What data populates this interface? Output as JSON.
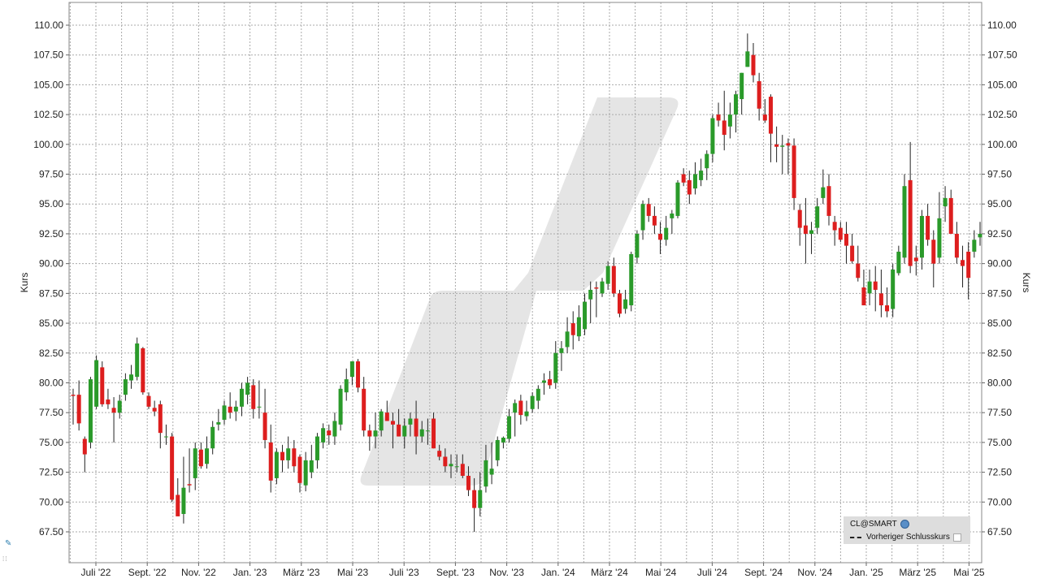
{
  "chart_data": {
    "type": "candlestick",
    "ylabel": "Kurs",
    "ylim": [
      65.5,
      111.5
    ],
    "yticks": [
      "110.00",
      "107.50",
      "105.00",
      "102.50",
      "100.00",
      "97.50",
      "95.00",
      "92.50",
      "90.00",
      "87.50",
      "85.00",
      "82.50",
      "80.00",
      "77.50",
      "75.00",
      "72.50",
      "70.00",
      "67.50"
    ],
    "xticks": [
      "Juli '22",
      "Sept. '22",
      "Nov. '22",
      "Jan. '23",
      "März '23",
      "Mai '23",
      "Juli '23",
      "Sept. '23",
      "Nov. '23",
      "Jan. '24",
      "März '24",
      "Mai '24",
      "Juli '24",
      "Sept. '24",
      "Nov. '24",
      "Jan. '25",
      "März '25",
      "Mai '25"
    ],
    "grid": true,
    "series": [
      {
        "name": "CL@SMART",
        "type": "ohlc",
        "values": [
          [
            79.0,
            79.5,
            76.5,
            78.9
          ],
          [
            79.0,
            80.2,
            76.0,
            76.6
          ],
          [
            75.3,
            75.5,
            72.5,
            74.0
          ],
          [
            75.0,
            80.5,
            74.5,
            80.3
          ],
          [
            78.0,
            82.3,
            77.8,
            81.9
          ],
          [
            81.3,
            81.8,
            78.0,
            78.2
          ],
          [
            78.6,
            79.5,
            77.8,
            78.2
          ],
          [
            77.9,
            78.8,
            75.0,
            77.5
          ],
          [
            77.5,
            79.0,
            77.0,
            78.5
          ],
          [
            79.0,
            80.8,
            78.5,
            80.3
          ],
          [
            80.2,
            81.5,
            79.5,
            80.7
          ],
          [
            80.5,
            83.8,
            80.2,
            83.3
          ],
          [
            82.9,
            83.0,
            79.0,
            79.2
          ],
          [
            78.9,
            79.2,
            77.8,
            78.0
          ],
          [
            77.9,
            78.5,
            77.2,
            77.6
          ],
          [
            78.2,
            78.5,
            74.5,
            75.8
          ],
          [
            75.5,
            76.5,
            74.8,
            75.5
          ],
          [
            75.5,
            75.8,
            70.0,
            70.2
          ],
          [
            70.6,
            72.0,
            69.3,
            68.8
          ],
          [
            69.0,
            73.8,
            68.2,
            71.2
          ],
          [
            71.5,
            74.5,
            70.8,
            71.4
          ],
          [
            72.0,
            75.0,
            71.0,
            74.5
          ],
          [
            74.4,
            75.0,
            72.8,
            73.0
          ],
          [
            73.2,
            75.5,
            72.8,
            74.5
          ],
          [
            74.5,
            76.8,
            74.0,
            76.3
          ],
          [
            76.5,
            77.8,
            76.0,
            76.7
          ],
          [
            76.9,
            78.5,
            76.5,
            78.1
          ],
          [
            78.0,
            79.2,
            77.0,
            77.5
          ],
          [
            77.6,
            78.5,
            76.8,
            78.0
          ],
          [
            78.0,
            80.0,
            77.2,
            79.5
          ],
          [
            79.0,
            80.5,
            78.2,
            80.0
          ],
          [
            79.8,
            80.3,
            77.0,
            77.8
          ],
          [
            78.0,
            80.2,
            77.0,
            78.0
          ],
          [
            77.5,
            79.5,
            74.5,
            75.2
          ],
          [
            75.0,
            76.5,
            70.8,
            71.8
          ],
          [
            72.0,
            74.5,
            71.5,
            74.2
          ],
          [
            74.2,
            74.8,
            72.5,
            73.5
          ],
          [
            73.5,
            75.5,
            72.8,
            74.5
          ],
          [
            74.5,
            75.2,
            72.5,
            73.0
          ],
          [
            73.8,
            74.0,
            70.8,
            71.6
          ],
          [
            71.4,
            74.2,
            70.9,
            73.5
          ],
          [
            72.5,
            74.8,
            72.0,
            73.5
          ],
          [
            73.5,
            75.8,
            72.8,
            75.5
          ],
          [
            75.0,
            76.6,
            74.5,
            76.2
          ],
          [
            76.0,
            76.5,
            74.8,
            75.6
          ],
          [
            75.5,
            77.5,
            74.8,
            76.8
          ],
          [
            76.5,
            79.8,
            76.0,
            79.5
          ],
          [
            79.2,
            81.2,
            78.5,
            80.3
          ],
          [
            80.5,
            81.8,
            79.8,
            81.8
          ],
          [
            81.8,
            82.0,
            79.2,
            79.6
          ],
          [
            79.5,
            80.5,
            75.5,
            76.0
          ],
          [
            76.0,
            76.5,
            74.3,
            75.5
          ],
          [
            75.5,
            77.5,
            74.5,
            76.0
          ],
          [
            76.0,
            77.8,
            75.5,
            77.6
          ],
          [
            77.5,
            78.5,
            76.8,
            76.8
          ],
          [
            76.8,
            77.5,
            74.5,
            76.5
          ],
          [
            76.5,
            77.8,
            75.5,
            75.5
          ],
          [
            75.5,
            77.0,
            74.5,
            76.4
          ],
          [
            76.5,
            77.5,
            75.5,
            77.0
          ],
          [
            77.0,
            78.5,
            74.0,
            75.5
          ],
          [
            75.5,
            76.8,
            75.0,
            76.1
          ],
          [
            76.0,
            77.0,
            74.8,
            76.0
          ],
          [
            77.0,
            77.5,
            74.5,
            74.5
          ],
          [
            74.3,
            74.8,
            73.5,
            73.8
          ],
          [
            73.8,
            74.5,
            72.5,
            73.0
          ],
          [
            73.0,
            74.0,
            72.0,
            73.2
          ],
          [
            73.0,
            74.0,
            72.5,
            73.0
          ],
          [
            73.2,
            74.0,
            72.0,
            72.2
          ],
          [
            72.2,
            73.0,
            70.5,
            71.0
          ],
          [
            71.0,
            72.0,
            67.5,
            69.5
          ],
          [
            69.5,
            72.5,
            68.8,
            71.0
          ],
          [
            71.3,
            74.8,
            70.8,
            73.5
          ],
          [
            72.3,
            75.0,
            71.5,
            72.8
          ],
          [
            73.5,
            75.5,
            73.0,
            75.2
          ],
          [
            75.0,
            75.5,
            74.5,
            75.4
          ],
          [
            75.3,
            77.8,
            75.0,
            77.2
          ],
          [
            77.5,
            78.6,
            75.5,
            78.3
          ],
          [
            78.5,
            79.0,
            76.5,
            77.3
          ],
          [
            77.2,
            78.5,
            76.8,
            77.6
          ],
          [
            77.8,
            79.2,
            77.5,
            78.9
          ],
          [
            78.5,
            79.8,
            77.8,
            79.5
          ],
          [
            80.0,
            80.8,
            79.0,
            80.2
          ],
          [
            80.3,
            81.0,
            79.5,
            79.8
          ],
          [
            80.0,
            83.5,
            79.5,
            82.5
          ],
          [
            82.5,
            83.5,
            81.0,
            82.9
          ],
          [
            83.0,
            85.5,
            82.5,
            84.3
          ],
          [
            85.0,
            86.0,
            82.8,
            84.0
          ],
          [
            83.9,
            86.5,
            83.5,
            85.5
          ],
          [
            84.5,
            87.5,
            84.0,
            86.8
          ],
          [
            87.0,
            88.5,
            85.0,
            87.8
          ],
          [
            88.0,
            88.5,
            85.5,
            87.9
          ],
          [
            87.5,
            88.8,
            87.2,
            88.5
          ],
          [
            88.3,
            90.2,
            87.8,
            89.8
          ],
          [
            89.8,
            90.5,
            87.2,
            87.5
          ],
          [
            87.5,
            87.8,
            85.5,
            85.8
          ],
          [
            86.2,
            87.8,
            85.8,
            87.0
          ],
          [
            86.5,
            91.0,
            86.0,
            90.8
          ],
          [
            90.5,
            92.8,
            90.0,
            92.5
          ],
          [
            92.8,
            95.3,
            92.0,
            95.0
          ],
          [
            95.0,
            95.5,
            93.5,
            94.0
          ],
          [
            94.0,
            94.8,
            92.5,
            93.2
          ],
          [
            92.5,
            93.5,
            90.8,
            92.0
          ],
          [
            92.0,
            94.0,
            91.5,
            93.0
          ],
          [
            93.8,
            94.5,
            92.5,
            94.2
          ],
          [
            94.0,
            97.0,
            93.8,
            96.8
          ],
          [
            97.5,
            98.0,
            96.5,
            96.8
          ],
          [
            97.0,
            97.8,
            95.0,
            95.8
          ],
          [
            96.3,
            98.5,
            95.8,
            97.5
          ],
          [
            97.0,
            98.8,
            96.5,
            97.8
          ],
          [
            98.0,
            99.5,
            97.0,
            99.2
          ],
          [
            99.2,
            102.5,
            98.5,
            102.2
          ],
          [
            102.5,
            103.5,
            101.5,
            102.0
          ],
          [
            102.0,
            104.5,
            99.5,
            100.8
          ],
          [
            101.5,
            103.5,
            100.5,
            102.5
          ],
          [
            102.5,
            104.5,
            101.0,
            104.2
          ],
          [
            103.8,
            106.0,
            102.5,
            106.0
          ],
          [
            106.5,
            109.3,
            106.5,
            107.8
          ],
          [
            107.5,
            108.5,
            105.2,
            105.8
          ],
          [
            105.3,
            106.0,
            102.0,
            103.0
          ],
          [
            102.5,
            103.8,
            101.8,
            102.0
          ],
          [
            104.0,
            104.2,
            98.5,
            100.9
          ],
          [
            100.0,
            101.5,
            98.5,
            99.8
          ],
          [
            99.8,
            100.8,
            97.5,
            99.9
          ],
          [
            100.1,
            100.5,
            97.5,
            99.9
          ],
          [
            99.9,
            100.5,
            94.5,
            95.5
          ],
          [
            94.5,
            95.0,
            91.5,
            93.0
          ],
          [
            93.2,
            95.5,
            90.0,
            92.5
          ],
          [
            92.5,
            93.5,
            90.8,
            92.8
          ],
          [
            93.0,
            95.5,
            92.5,
            94.8
          ],
          [
            95.5,
            97.9,
            95.0,
            96.4
          ],
          [
            96.5,
            97.5,
            93.2,
            94.0
          ],
          [
            93.5,
            94.0,
            91.5,
            92.8
          ],
          [
            93.0,
            93.5,
            91.8,
            92.0
          ],
          [
            92.5,
            93.5,
            90.0,
            91.5
          ],
          [
            91.5,
            92.5,
            90.0,
            90.2
          ],
          [
            90.0,
            91.5,
            88.5,
            88.8
          ],
          [
            88.0,
            89.5,
            86.5,
            86.5
          ],
          [
            87.5,
            89.5,
            86.5,
            88.5
          ],
          [
            88.5,
            89.8,
            86.0,
            87.8
          ],
          [
            87.5,
            89.5,
            85.5,
            86.5
          ],
          [
            86.5,
            88.0,
            85.5,
            86.0
          ],
          [
            86.2,
            90.0,
            85.5,
            89.5
          ],
          [
            89.2,
            91.5,
            89.0,
            91.0
          ],
          [
            90.5,
            97.5,
            90.0,
            96.5
          ],
          [
            97.0,
            100.2,
            89.2,
            89.8
          ],
          [
            90.5,
            91.5,
            89.0,
            90.2
          ],
          [
            90.5,
            94.5,
            89.5,
            94.0
          ],
          [
            94.0,
            95.0,
            91.5,
            92.0
          ],
          [
            92.0,
            92.8,
            88.0,
            90.0
          ],
          [
            90.5,
            96.0,
            90.0,
            93.8
          ],
          [
            94.8,
            96.5,
            93.5,
            95.5
          ],
          [
            95.5,
            96.2,
            92.8,
            92.5
          ],
          [
            92.5,
            93.5,
            90.0,
            90.5
          ],
          [
            90.3,
            91.5,
            88.0,
            89.8
          ],
          [
            91.0,
            91.8,
            87.0,
            88.8
          ],
          [
            91.0,
            92.8,
            90.5,
            92.0
          ],
          [
            92.2,
            93.5,
            91.5,
            92.5
          ]
        ]
      }
    ]
  },
  "legend": {
    "items": [
      {
        "label": "CL@SMART",
        "icon": "globe-icon"
      },
      {
        "label": "Vorheriger Schlusskurs",
        "icon": "dashed-line-icon"
      }
    ]
  },
  "colors": {
    "up": "#2a9a2a",
    "down": "#dd1e1e",
    "grid": "#aaaaaa",
    "watermark": "#e3e3e3"
  }
}
